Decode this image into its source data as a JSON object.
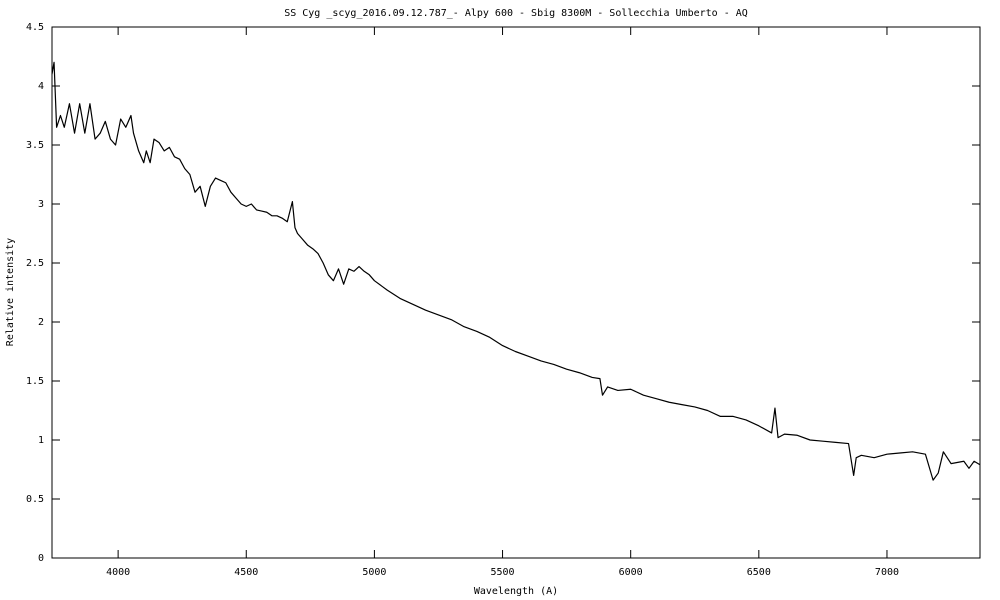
{
  "chart_data": {
    "type": "line",
    "title": "SS Cyg _scyg_2016.09.12.787_- Alpy 600 - Sbig 8300M  - Sollecchia Umberto - AQ",
    "x_label": "Wavelength (A)",
    "y_label": "Relative intensity",
    "color": "#000000",
    "xlim": [
      3742,
      7363
    ],
    "ylim": [
      0,
      4.5
    ],
    "xticks": [
      4000,
      4500,
      5000,
      5500,
      6000,
      6500,
      7000
    ],
    "yticks": [
      0,
      0.5,
      1,
      1.5,
      2,
      2.5,
      3,
      3.5,
      4,
      4.5
    ],
    "grid": false,
    "x": [
      3742,
      3750,
      3760,
      3775,
      3790,
      3810,
      3830,
      3850,
      3870,
      3890,
      3910,
      3930,
      3950,
      3970,
      3990,
      4010,
      4030,
      4050,
      4060,
      4080,
      4100,
      4110,
      4125,
      4140,
      4160,
      4180,
      4200,
      4220,
      4240,
      4260,
      4280,
      4300,
      4320,
      4340,
      4360,
      4380,
      4400,
      4420,
      4440,
      4460,
      4480,
      4500,
      4520,
      4540,
      4560,
      4580,
      4600,
      4620,
      4640,
      4660,
      4680,
      4690,
      4700,
      4720,
      4740,
      4760,
      4780,
      4800,
      4820,
      4840,
      4860,
      4880,
      4900,
      4920,
      4940,
      4960,
      4980,
      5000,
      5050,
      5100,
      5150,
      5200,
      5250,
      5300,
      5350,
      5400,
      5450,
      5500,
      5550,
      5600,
      5650,
      5700,
      5750,
      5800,
      5850,
      5880,
      5890,
      5910,
      5950,
      6000,
      6050,
      6100,
      6150,
      6200,
      6250,
      6300,
      6350,
      6400,
      6450,
      6500,
      6550,
      6563,
      6575,
      6600,
      6650,
      6700,
      6750,
      6800,
      6850,
      6870,
      6880,
      6900,
      6950,
      7000,
      7050,
      7100,
      7150,
      7180,
      7200,
      7220,
      7250,
      7300,
      7320,
      7340,
      7363
    ],
    "values": [
      4.1,
      4.2,
      3.65,
      3.75,
      3.65,
      3.85,
      3.6,
      3.85,
      3.6,
      3.85,
      3.55,
      3.6,
      3.7,
      3.55,
      3.5,
      3.72,
      3.65,
      3.75,
      3.6,
      3.45,
      3.35,
      3.45,
      3.35,
      3.55,
      3.52,
      3.45,
      3.48,
      3.4,
      3.38,
      3.3,
      3.25,
      3.1,
      3.15,
      2.98,
      3.15,
      3.22,
      3.2,
      3.18,
      3.1,
      3.05,
      3.0,
      2.98,
      3.0,
      2.95,
      2.94,
      2.93,
      2.9,
      2.9,
      2.88,
      2.85,
      3.02,
      2.8,
      2.75,
      2.7,
      2.65,
      2.62,
      2.58,
      2.5,
      2.4,
      2.35,
      2.45,
      2.32,
      2.45,
      2.43,
      2.47,
      2.43,
      2.4,
      2.35,
      2.27,
      2.2,
      2.15,
      2.1,
      2.06,
      2.02,
      1.96,
      1.92,
      1.87,
      1.8,
      1.75,
      1.71,
      1.67,
      1.64,
      1.6,
      1.57,
      1.53,
      1.52,
      1.38,
      1.45,
      1.42,
      1.43,
      1.38,
      1.35,
      1.32,
      1.3,
      1.28,
      1.25,
      1.2,
      1.2,
      1.17,
      1.12,
      1.06,
      1.27,
      1.02,
      1.05,
      1.04,
      1.0,
      0.99,
      0.98,
      0.97,
      0.7,
      0.85,
      0.87,
      0.85,
      0.88,
      0.89,
      0.9,
      0.88,
      0.66,
      0.72,
      0.9,
      0.8,
      0.82,
      0.76,
      0.82,
      0.79
    ]
  }
}
